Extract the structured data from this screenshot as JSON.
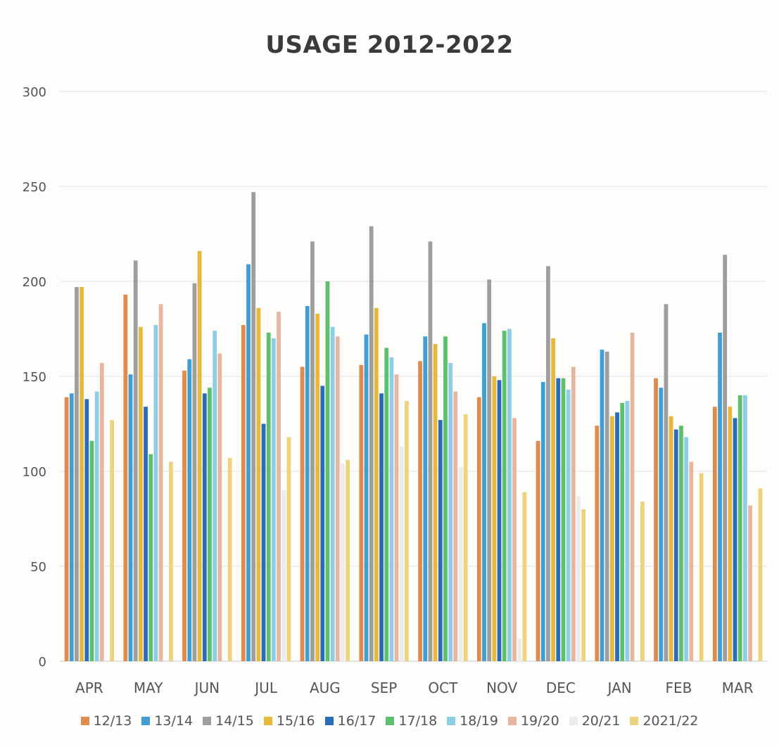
{
  "chart_data": {
    "type": "bar",
    "title": "USAGE  2012-2022",
    "xlabel": "",
    "ylabel": "",
    "ylim": [
      0,
      300
    ],
    "yticks": [
      0,
      50,
      100,
      150,
      200,
      250,
      300
    ],
    "grid": true,
    "legend_position": "bottom",
    "categories": [
      "APR",
      "MAY",
      "JUN",
      "JUL",
      "AUG",
      "SEP",
      "OCT",
      "NOV",
      "DEC",
      "JAN",
      "FEB",
      "MAR"
    ],
    "series": [
      {
        "name": "12/13",
        "color": "#e08a4c",
        "values": [
          139,
          193,
          153,
          177,
          155,
          156,
          158,
          139,
          116,
          124,
          149,
          134
        ]
      },
      {
        "name": "13/14",
        "color": "#3f9fd4",
        "values": [
          141,
          151,
          159,
          209,
          187,
          172,
          171,
          178,
          147,
          164,
          144,
          173
        ]
      },
      {
        "name": "14/15",
        "color": "#9e9e9e",
        "values": [
          197,
          211,
          199,
          247,
          221,
          229,
          221,
          201,
          208,
          163,
          188,
          214
        ]
      },
      {
        "name": "15/16",
        "color": "#e6b93a",
        "values": [
          197,
          176,
          216,
          186,
          183,
          186,
          167,
          150,
          170,
          129,
          129,
          134
        ]
      },
      {
        "name": "16/17",
        "color": "#2b6cb8",
        "values": [
          138,
          134,
          141,
          125,
          145,
          141,
          127,
          148,
          149,
          131,
          122,
          128
        ]
      },
      {
        "name": "17/18",
        "color": "#5cc06e",
        "values": [
          116,
          109,
          144,
          173,
          200,
          165,
          171,
          174,
          149,
          136,
          124,
          140
        ]
      },
      {
        "name": "18/19",
        "color": "#8ecde6",
        "values": [
          142,
          177,
          174,
          170,
          176,
          160,
          157,
          175,
          143,
          137,
          118,
          140
        ]
      },
      {
        "name": "19/20",
        "color": "#e7b6a0",
        "values": [
          157,
          188,
          162,
          184,
          171,
          151,
          142,
          128,
          155,
          173,
          105,
          82
        ]
      },
      {
        "name": "20/21",
        "color": "#ececec",
        "values": [
          0,
          0,
          0,
          90,
          104,
          113,
          102,
          12,
          87,
          0,
          0,
          0
        ]
      },
      {
        "name": "2021/22",
        "color": "#ecd37e",
        "values": [
          127,
          105,
          107,
          118,
          106,
          137,
          130,
          89,
          80,
          84,
          99,
          91
        ]
      }
    ]
  }
}
